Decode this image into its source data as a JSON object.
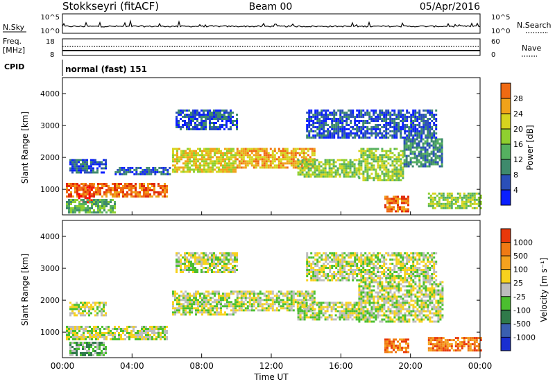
{
  "header": {
    "station": "Stokkseyri (fitACF)",
    "beam": "Beam 00",
    "date": "05/Apr/2016"
  },
  "noise_panel": {
    "left_label": "N.Sky",
    "right_label": "N.Search",
    "left_ticks": [
      "10^5",
      "10^0"
    ],
    "right_ticks": [
      "10^5",
      "10^0"
    ]
  },
  "freq_panel": {
    "left_label_line1": "Freq.",
    "left_label_line2": "[MHz]",
    "right_label": "Nave",
    "left_ticks": [
      "18",
      "8"
    ],
    "right_ticks": [
      "60",
      "0"
    ]
  },
  "cpid_panel": {
    "label": "CPID",
    "text": "normal (fast) 151"
  },
  "colors": {
    "power": [
      "#0a1fff",
      "#2a4fb8",
      "#3e8a6c",
      "#55b060",
      "#8fcf2f",
      "#d6d41e",
      "#f0a21a",
      "#f06a12",
      "#e02a0a",
      "#ff0000"
    ],
    "velocity": [
      "#1a2fd0",
      "#3a5fb0",
      "#2f7a4a",
      "#4bbf2f",
      "#bdbdbd",
      "#f7d21e",
      "#f5a21e",
      "#f07a14",
      "#e8380a",
      "#ff0000"
    ]
  },
  "chart_data": [
    {
      "type": "heatmap",
      "name": "power",
      "ylabel": "Slant Range [km]",
      "colorbar_label": "Power [dB]",
      "colorbar_ticks": [
        "28",
        "24",
        "20",
        "16",
        "12",
        "8",
        "4"
      ],
      "yticks": [
        "1000",
        "2000",
        "3000",
        "4000"
      ],
      "ylim": [
        200,
        4500
      ],
      "xlim": [
        0,
        24
      ],
      "regions": [
        {
          "t0": 0.2,
          "t1": 6.0,
          "r0": 800,
          "r1": 1200,
          "level": 7
        },
        {
          "t0": 0.9,
          "t1": 1.8,
          "r0": 500,
          "r1": 1150,
          "level": 8
        },
        {
          "t0": 0.4,
          "t1": 2.5,
          "r0": 1550,
          "r1": 1950,
          "level": 1
        },
        {
          "t0": 3.0,
          "t1": 6.2,
          "r0": 1500,
          "r1": 1700,
          "level": 1
        },
        {
          "t0": 0.2,
          "t1": 3.0,
          "r0": 250,
          "r1": 700,
          "level": 3
        },
        {
          "t0": 6.3,
          "t1": 10.0,
          "r0": 1550,
          "r1": 2300,
          "level": 5
        },
        {
          "t0": 10.0,
          "t1": 14.5,
          "r0": 1650,
          "r1": 2300,
          "level": 6
        },
        {
          "t0": 13.5,
          "t1": 17.0,
          "r0": 1400,
          "r1": 1950,
          "level": 4
        },
        {
          "t0": 17.0,
          "t1": 19.6,
          "r0": 1300,
          "r1": 2300,
          "level": 4
        },
        {
          "t0": 19.6,
          "t1": 21.8,
          "r0": 1700,
          "r1": 2600,
          "level": 2
        },
        {
          "t0": 18.5,
          "t1": 19.9,
          "r0": 300,
          "r1": 800,
          "level": 7
        },
        {
          "t0": 21.0,
          "t1": 24.0,
          "r0": 400,
          "r1": 900,
          "level": 4
        },
        {
          "t0": 6.5,
          "t1": 10.0,
          "r0": 2900,
          "r1": 3500,
          "level": 1
        },
        {
          "t0": 14.0,
          "t1": 21.5,
          "r0": 2600,
          "r1": 3500,
          "level": 1
        }
      ]
    },
    {
      "type": "heatmap",
      "name": "velocity",
      "ylabel": "Slant Range [km]",
      "xlabel": "Time UT",
      "colorbar_label": "Velocity [m s⁻¹]",
      "colorbar_ticks": [
        "1000",
        "500",
        "100",
        "25",
        "-25",
        "-100",
        "-500",
        "-1000"
      ],
      "yticks": [
        "1000",
        "2000",
        "3000",
        "4000"
      ],
      "xticks": [
        "00:00",
        "04:00",
        "08:00",
        "12:00",
        "16:00",
        "20:00",
        "00:00"
      ],
      "ylim": [
        200,
        4500
      ],
      "xlim": [
        0,
        24
      ],
      "regions": [
        {
          "t0": 0.2,
          "t1": 6.0,
          "r0": 800,
          "r1": 1200,
          "level": 4
        },
        {
          "t0": 0.4,
          "t1": 2.5,
          "r0": 1550,
          "r1": 1950,
          "level": 4
        },
        {
          "t0": 0.4,
          "t1": 2.5,
          "r0": 250,
          "r1": 700,
          "level": 3
        },
        {
          "t0": 6.3,
          "t1": 10.0,
          "r0": 1550,
          "r1": 2300,
          "level": 4
        },
        {
          "t0": 10.0,
          "t1": 14.5,
          "r0": 1650,
          "r1": 2300,
          "level": 4
        },
        {
          "t0": 13.5,
          "t1": 17.0,
          "r0": 1400,
          "r1": 1950,
          "level": 4
        },
        {
          "t0": 17.0,
          "t1": 21.8,
          "r0": 1300,
          "r1": 2600,
          "level": 4
        },
        {
          "t0": 18.5,
          "t1": 19.9,
          "r0": 400,
          "r1": 800,
          "level": 7
        },
        {
          "t0": 21.0,
          "t1": 24.0,
          "r0": 450,
          "r1": 850,
          "level": 7
        },
        {
          "t0": 6.5,
          "t1": 10.0,
          "r0": 2900,
          "r1": 3500,
          "level": 4
        },
        {
          "t0": 14.0,
          "t1": 21.5,
          "r0": 2600,
          "r1": 3500,
          "level": 4
        }
      ]
    }
  ]
}
